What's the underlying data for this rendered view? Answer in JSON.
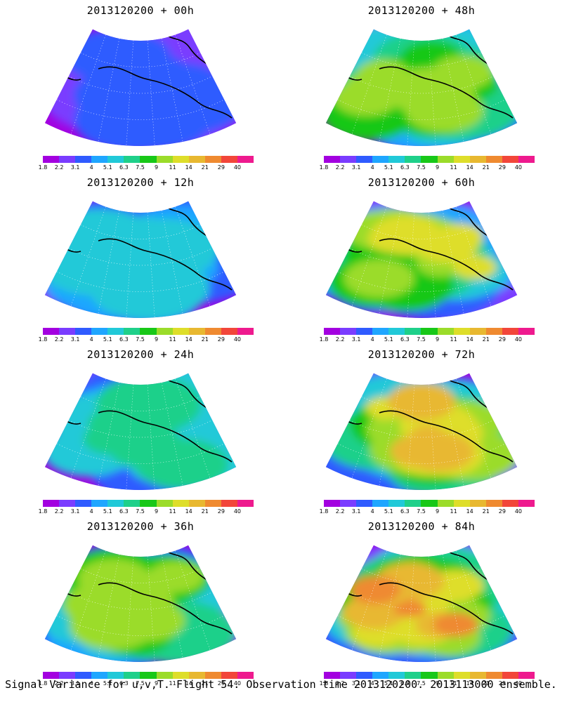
{
  "palette": [
    "#a300e0",
    "#7a3cff",
    "#2f5bff",
    "#1fa6ff",
    "#21c9d8",
    "#1fd08a",
    "#18c818",
    "#9bdc2a",
    "#dede2a",
    "#e8b830",
    "#ef8a30",
    "#f2463a",
    "#ee1a8e"
  ],
  "colorbar_labels": [
    "1.8",
    "2.2",
    "3.1",
    "4",
    "5.1",
    "6.3",
    "7.5",
    "9",
    "11",
    "14",
    "21",
    "29",
    "40"
  ],
  "panels": [
    {
      "id": "p00",
      "title": "2013120200 + 00h",
      "intensity": 0.15
    },
    {
      "id": "p12",
      "title": "2013120200 + 12h",
      "intensity": 0.3
    },
    {
      "id": "p24",
      "title": "2013120200 + 24h",
      "intensity": 0.42
    },
    {
      "id": "p36",
      "title": "2013120200 + 36h",
      "intensity": 0.55
    },
    {
      "id": "p48",
      "title": "2013120200 + 48h",
      "intensity": 0.62
    },
    {
      "id": "p60",
      "title": "2013120200 + 60h",
      "intensity": 0.68
    },
    {
      "id": "p72",
      "title": "2013120200 + 72h",
      "intensity": 0.74
    },
    {
      "id": "p84",
      "title": "2013120200 + 84h",
      "intensity": 0.82
    }
  ],
  "footer": "Signal Variance for u,v,T. Flight 54. Observation time 2013120200. 2013113000 ensemble."
}
